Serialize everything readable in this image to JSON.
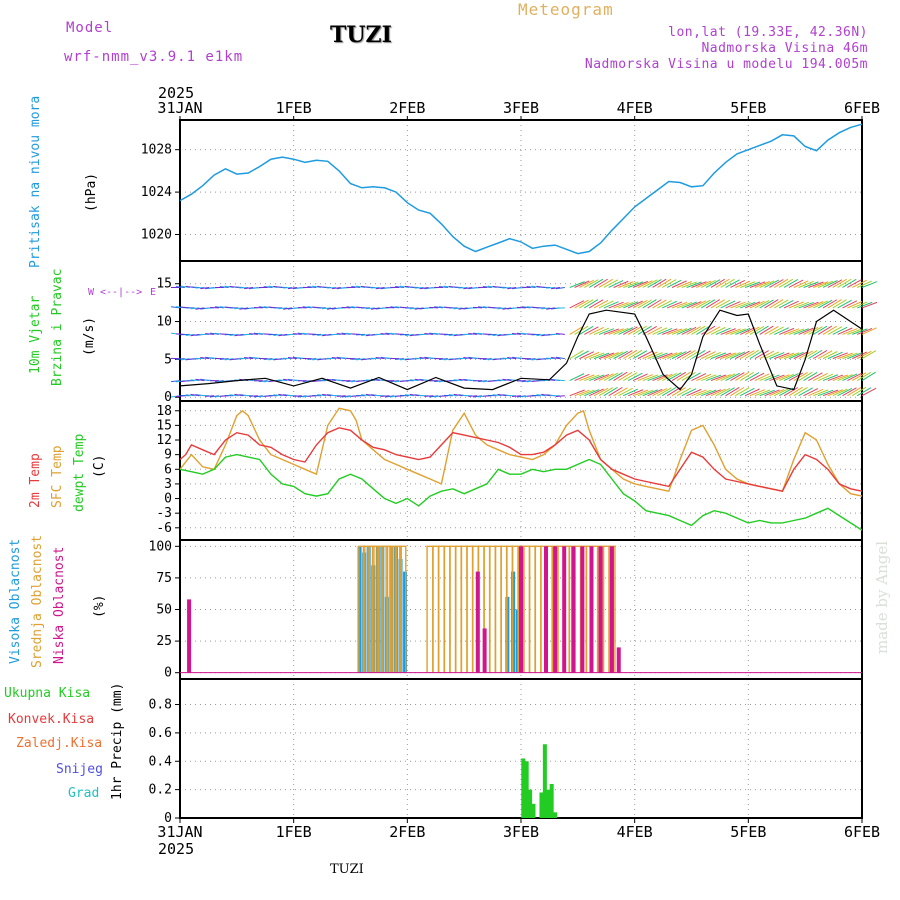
{
  "header": {
    "model_label": "Model",
    "model_name": "wrf-nmm_v3.9.1 e1km",
    "title": "TUZI",
    "meteogram": "Meteogram",
    "lonlat": "lon,lat (19.33E, 42.36N)",
    "altitude": "Nadmorska Visina 46m",
    "model_altitude": "Nadmorska Visina u modelu 194.005m"
  },
  "footer": {
    "station": "TUZI",
    "credit": "made by Angel"
  },
  "colors": {
    "pressure": "#1e9be0",
    "temp2m": "#e83a3a",
    "sfc": "#e0a030",
    "dewpt": "#22cc22",
    "high_cloud": "#1e9be0",
    "mid_cloud": "#e0a030",
    "low_cloud": "#d0158e",
    "precip": "#22cc22",
    "purple": "#b040d0"
  },
  "time_axis": {
    "year": "2025",
    "labels": [
      "31JAN",
      "1FEB",
      "2FEB",
      "3FEB",
      "4FEB",
      "5FEB",
      "6FEB"
    ]
  },
  "panels": {
    "pressure": {
      "labels": [
        "Pritisak na nivou mora"
      ],
      "unit": "(hPa)"
    },
    "wind": {
      "labels": [
        "10m Vjetar",
        "Brzina i Pravac"
      ],
      "unit": "(m/s)",
      "compass": "N S W E"
    },
    "temp": {
      "labels": [
        "2m Temp",
        "SFC Temp",
        "dewpt Temp"
      ],
      "unit": "(C)"
    },
    "cloud": {
      "labels": [
        "Visoka Oblacnost",
        "Srednja Oblacnost",
        "Niska Oblacnost"
      ],
      "unit": "(%)"
    },
    "precip": {
      "labels": [
        "Ukupna Kisa",
        "Konvek.Kisa",
        "Zaledj.Kisa",
        "Snijeg",
        "Grad"
      ],
      "unit": "1hr Precip (mm)"
    }
  },
  "chart_data": [
    {
      "type": "line",
      "panel": "pressure",
      "xlim": [
        0,
        6
      ],
      "ylim": [
        1017.5,
        1030.8
      ],
      "yticks": [
        1020,
        1024,
        1028
      ],
      "series": [
        {
          "x": [
            0,
            0.1,
            0.2,
            0.3,
            0.4,
            0.5,
            0.6,
            0.7,
            0.8,
            0.9,
            1.0,
            1.1,
            1.2,
            1.3,
            1.4,
            1.5,
            1.6,
            1.7,
            1.8,
            1.9,
            2.0,
            2.1,
            2.2,
            2.3,
            2.4,
            2.5,
            2.6,
            2.7,
            2.8,
            2.9,
            3.0,
            3.1,
            3.2,
            3.3,
            3.4,
            3.5,
            3.6,
            3.7,
            3.8,
            3.9,
            4.0,
            4.1,
            4.2,
            4.3,
            4.4,
            4.5,
            4.6,
            4.7,
            4.8,
            4.9,
            5.0,
            5.1,
            5.2,
            5.3,
            5.4,
            5.5,
            5.6,
            5.7,
            5.8,
            5.9,
            6.0
          ],
          "y": [
            1023.2,
            1023.8,
            1024.6,
            1025.6,
            1026.2,
            1025.7,
            1025.8,
            1026.4,
            1027.1,
            1027.3,
            1027.1,
            1026.8,
            1027.0,
            1026.9,
            1026.0,
            1024.8,
            1024.4,
            1024.5,
            1024.4,
            1024.0,
            1023.0,
            1022.3,
            1022.0,
            1021.0,
            1019.8,
            1018.9,
            1018.4,
            1018.8,
            1019.2,
            1019.6,
            1019.3,
            1018.7,
            1018.9,
            1019.0,
            1018.6,
            1018.2,
            1018.4,
            1019.2,
            1020.4,
            1021.5,
            1022.6,
            1023.4,
            1024.2,
            1025.0,
            1024.9,
            1024.5,
            1024.6,
            1025.8,
            1026.8,
            1027.6,
            1028.0,
            1028.4,
            1028.8,
            1029.4,
            1029.3,
            1028.3,
            1027.9,
            1028.9,
            1029.6,
            1030.1,
            1030.4
          ]
        }
      ]
    },
    {
      "type": "line",
      "panel": "wind",
      "xlim": [
        0,
        6
      ],
      "ylim": [
        -0.5,
        18
      ],
      "yticks": [
        0,
        5,
        10,
        15
      ],
      "series": [
        {
          "name": "wind speed",
          "x": [
            0,
            0.25,
            0.5,
            0.75,
            1.0,
            1.25,
            1.5,
            1.75,
            2.0,
            2.25,
            2.5,
            2.75,
            3.0,
            3.25,
            3.4,
            3.5,
            3.6,
            3.75,
            4.0,
            4.1,
            4.25,
            4.4,
            4.5,
            4.6,
            4.75,
            4.9,
            5.0,
            5.1,
            5.25,
            5.4,
            5.5,
            5.6,
            5.75,
            6.0
          ],
          "y": [
            1.5,
            1.8,
            2.2,
            2.5,
            1.5,
            2.5,
            1.2,
            2.6,
            1.0,
            2.6,
            1.2,
            1.0,
            2.5,
            2.3,
            4.5,
            8.0,
            11.0,
            11.5,
            11.0,
            8.0,
            3.0,
            1.0,
            3.0,
            8.0,
            11.5,
            10.8,
            11.0,
            7.0,
            1.5,
            1.0,
            5.0,
            10.0,
            11.5,
            9.0
          ]
        }
      ]
    },
    {
      "type": "line",
      "panel": "temp",
      "xlim": [
        0,
        6
      ],
      "ylim": [
        -8.5,
        20
      ],
      "yticks": [
        -6,
        -3,
        0,
        3,
        6,
        9,
        12,
        15,
        18
      ],
      "series": [
        {
          "name": "2m Temp",
          "x": [
            0,
            0.05,
            0.1,
            0.2,
            0.3,
            0.4,
            0.5,
            0.6,
            0.7,
            0.8,
            0.9,
            1.0,
            1.1,
            1.2,
            1.3,
            1.4,
            1.5,
            1.6,
            1.7,
            1.8,
            1.9,
            2.0,
            2.1,
            2.2,
            2.3,
            2.4,
            2.5,
            2.6,
            2.7,
            2.8,
            2.9,
            3.0,
            3.1,
            3.2,
            3.3,
            3.4,
            3.5,
            3.6,
            3.7,
            3.8,
            3.9,
            4.0,
            4.1,
            4.2,
            4.3,
            4.4,
            4.5,
            4.6,
            4.7,
            4.8,
            4.9,
            5.0,
            5.1,
            5.2,
            5.3,
            5.4,
            5.5,
            5.6,
            5.7,
            5.8,
            5.9,
            6.0
          ],
          "y": [
            8,
            9,
            11,
            10,
            9,
            12,
            13.5,
            13,
            11,
            10.5,
            9,
            8,
            7.5,
            11,
            13.5,
            14.5,
            14,
            12,
            10.5,
            10,
            9,
            8.5,
            8,
            8.5,
            11,
            13.5,
            13,
            12.5,
            12,
            11.5,
            10.5,
            9,
            9,
            9.5,
            11,
            13,
            14,
            12,
            8,
            6,
            5,
            4,
            3.5,
            3,
            2.5,
            6,
            9.5,
            8.5,
            6,
            4,
            3.5,
            3,
            2.5,
            2,
            1.5,
            6,
            9,
            8,
            6,
            3,
            2,
            1.5
          ]
        },
        {
          "name": "SFC Temp",
          "x": [
            0,
            0.1,
            0.2,
            0.3,
            0.4,
            0.5,
            0.55,
            0.6,
            0.7,
            0.8,
            0.9,
            1.0,
            1.1,
            1.2,
            1.3,
            1.4,
            1.5,
            1.55,
            1.6,
            1.7,
            1.8,
            1.9,
            2.0,
            2.1,
            2.2,
            2.3,
            2.4,
            2.5,
            2.6,
            2.7,
            2.8,
            2.9,
            3.0,
            3.1,
            3.2,
            3.3,
            3.4,
            3.5,
            3.55,
            3.6,
            3.7,
            3.8,
            3.9,
            4.0,
            4.1,
            4.2,
            4.3,
            4.4,
            4.5,
            4.6,
            4.7,
            4.8,
            4.9,
            5.0,
            5.1,
            5.2,
            5.3,
            5.4,
            5.5,
            5.6,
            5.7,
            5.8,
            5.9,
            6.0
          ],
          "y": [
            6,
            9,
            6.5,
            6,
            11,
            17,
            18,
            17,
            12,
            9,
            8,
            7,
            6,
            5,
            15,
            18.5,
            18,
            16,
            12,
            10,
            8,
            7,
            6,
            5,
            4,
            3,
            14,
            17.5,
            13,
            11,
            10,
            9,
            8.5,
            8,
            9,
            11,
            15,
            17.5,
            18,
            14,
            8,
            6,
            4,
            3,
            2.5,
            2,
            1.5,
            8,
            14,
            15,
            11,
            6,
            4,
            3,
            2.5,
            2,
            1.5,
            8,
            13.5,
            12,
            7,
            3,
            1,
            0.5
          ]
        },
        {
          "name": "dewpt Temp",
          "x": [
            0,
            0.1,
            0.2,
            0.3,
            0.4,
            0.5,
            0.6,
            0.7,
            0.8,
            0.9,
            1.0,
            1.1,
            1.2,
            1.3,
            1.4,
            1.5,
            1.6,
            1.7,
            1.8,
            1.9,
            2.0,
            2.1,
            2.2,
            2.3,
            2.4,
            2.5,
            2.6,
            2.7,
            2.8,
            2.9,
            3.0,
            3.1,
            3.2,
            3.3,
            3.4,
            3.5,
            3.6,
            3.7,
            3.8,
            3.9,
            4.0,
            4.1,
            4.2,
            4.3,
            4.4,
            4.5,
            4.6,
            4.7,
            4.8,
            4.9,
            5.0,
            5.1,
            5.2,
            5.3,
            5.4,
            5.5,
            5.6,
            5.7,
            5.8,
            5.9,
            6.0
          ],
          "y": [
            6,
            5.5,
            5,
            6,
            8.5,
            9,
            8.5,
            8,
            5,
            3,
            2.5,
            1,
            0.5,
            1,
            4,
            5,
            4,
            2,
            0,
            -1,
            0,
            -1.5,
            0.5,
            1.5,
            2,
            1,
            2,
            3,
            6,
            5,
            5,
            6,
            5.5,
            6,
            6,
            7,
            8,
            7,
            4,
            1,
            -0.5,
            -2.5,
            -3,
            -3.5,
            -4.5,
            -5.5,
            -3.5,
            -2.5,
            -3,
            -4,
            -5,
            -4.5,
            -5,
            -5,
            -4.5,
            -4,
            -3,
            -2,
            -3.5,
            -5,
            -6.5
          ]
        }
      ]
    },
    {
      "type": "bar",
      "panel": "cloud",
      "xlim": [
        0,
        6
      ],
      "ylim": [
        -5,
        105
      ],
      "yticks": [
        0,
        25,
        50,
        75,
        100
      ],
      "series": [
        {
          "name": "Visoka Oblacnost",
          "x": [
            1.58,
            1.62,
            1.66,
            1.7,
            1.74,
            1.78,
            1.82,
            1.86,
            1.9,
            1.94,
            1.98,
            2.88,
            2.93,
            2.97
          ],
          "y": [
            100,
            95,
            100,
            85,
            100,
            100,
            60,
            100,
            100,
            90,
            80,
            60,
            80,
            50
          ]
        },
        {
          "name": "Srednja Oblacnost",
          "x": [
            1.6,
            1.64,
            1.68,
            1.72,
            1.76,
            1.8,
            1.84,
            1.88,
            1.92,
            1.96,
            2.2,
            2.25,
            2.3,
            2.35,
            2.4,
            2.45,
            2.5,
            2.55,
            2.6,
            2.65,
            2.7,
            2.75,
            2.8,
            2.85,
            2.9,
            2.95,
            3.0,
            3.05,
            3.1,
            3.15,
            3.2,
            3.25,
            3.3,
            3.35,
            3.4,
            3.45,
            3.5,
            3.55,
            3.6,
            3.65,
            3.7,
            3.75,
            3.8
          ],
          "y": [
            100,
            100,
            100,
            100,
            100,
            100,
            100,
            100,
            100,
            100,
            100,
            100,
            100,
            100,
            100,
            100,
            100,
            100,
            100,
            100,
            100,
            100,
            100,
            100,
            100,
            100,
            100,
            100,
            100,
            100,
            100,
            100,
            100,
            100,
            100,
            100,
            100,
            100,
            100,
            100,
            100,
            100,
            100
          ]
        },
        {
          "name": "Niska Oblacnost",
          "x": [
            0.08,
            2.62,
            2.68,
            3.0,
            3.22,
            3.3,
            3.38,
            3.46,
            3.54,
            3.62,
            3.7,
            3.8,
            3.86
          ],
          "y": [
            58,
            80,
            35,
            100,
            100,
            100,
            100,
            100,
            100,
            100,
            100,
            100,
            20
          ]
        }
      ]
    },
    {
      "type": "bar",
      "panel": "precip",
      "xlim": [
        0,
        6
      ],
      "ylim": [
        0,
        0.98
      ],
      "yticks": [
        0,
        0.2,
        0.4,
        0.6,
        0.8
      ],
      "series": [
        {
          "name": "Ukupna Kisa",
          "x": [
            3.02,
            3.05,
            3.08,
            3.11,
            3.18,
            3.21,
            3.24,
            3.27,
            3.3
          ],
          "y": [
            0.42,
            0.4,
            0.2,
            0.1,
            0.18,
            0.52,
            0.2,
            0.24,
            0.04
          ]
        }
      ]
    }
  ]
}
